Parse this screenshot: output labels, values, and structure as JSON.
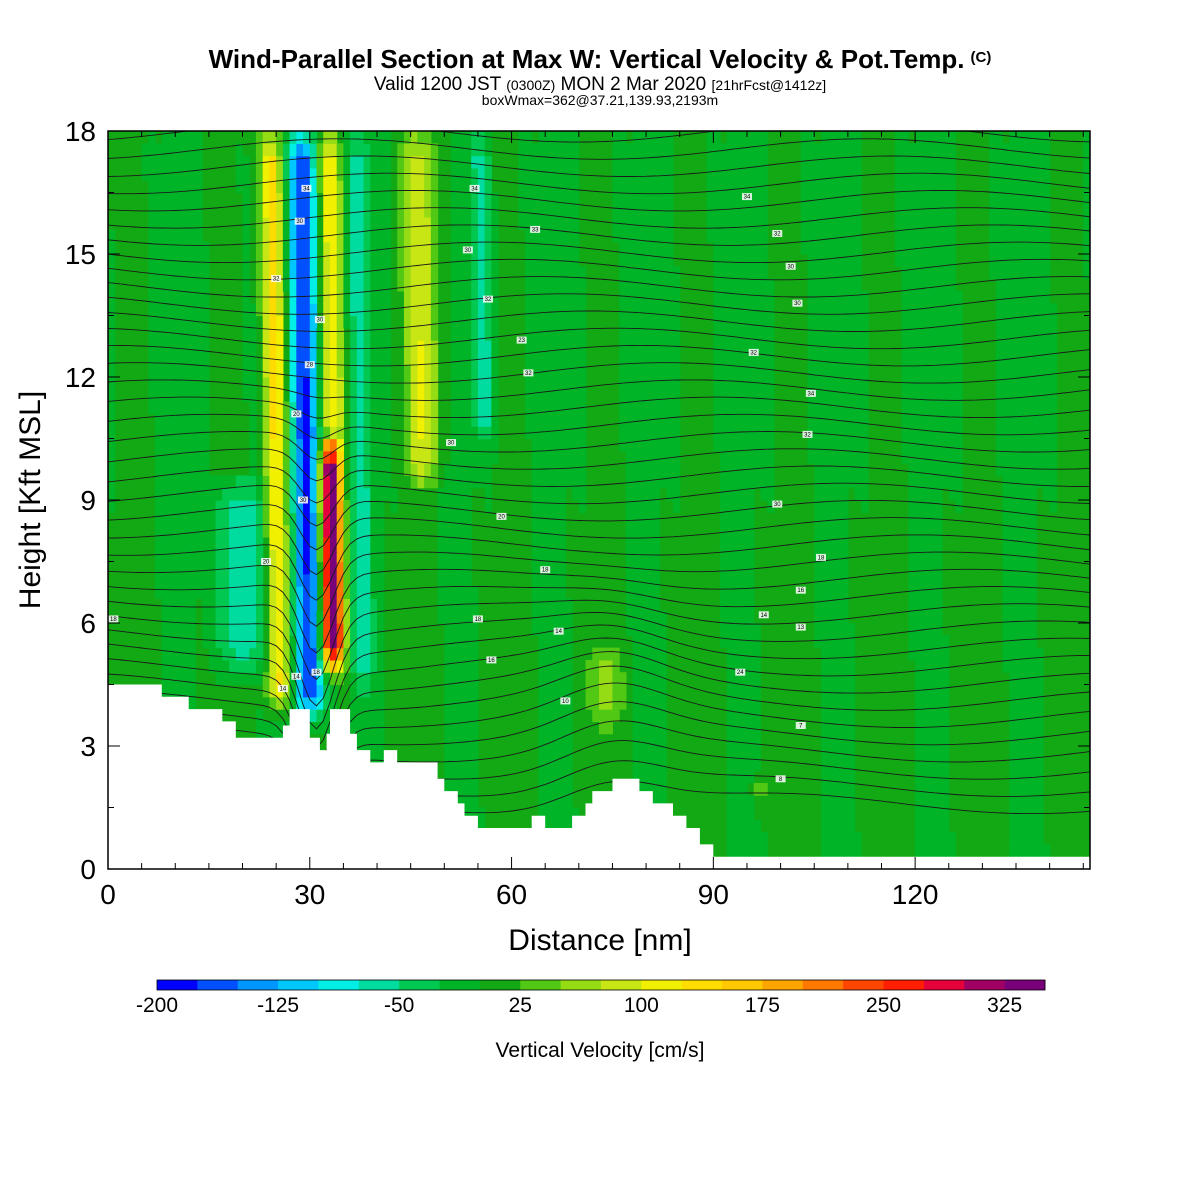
{
  "title": {
    "main": "Wind-Parallel Section at Max W: Vertical Velocity & Pot.Temp.",
    "copyright": "(C)",
    "valid_prefix": "Valid 1200 JST",
    "valid_utc": "(0300Z)",
    "valid_date": "MON 2 Mar 2020",
    "forecast": "[21hrFcst@1412z]",
    "box": "boxWmax=362@37.21,139.93,2193m"
  },
  "chart_data": {
    "type": "heatmap",
    "xlabel": "Distance [nm]",
    "ylabel": "Height [Kft MSL]",
    "xlim": [
      0,
      146
    ],
    "ylim": [
      0,
      18
    ],
    "x_ticks": [
      "0",
      "30",
      "60",
      "90",
      "120"
    ],
    "x_tick_values": [
      0,
      30,
      60,
      90,
      120
    ],
    "y_ticks": [
      "0",
      "3",
      "6",
      "9",
      "12",
      "15",
      "18"
    ],
    "y_tick_values": [
      0,
      3,
      6,
      9,
      12,
      15,
      18
    ],
    "colorbar": {
      "title": "Vertical Velocity [cm/s]",
      "labels": [
        "-200",
        "-125",
        "-50",
        "25",
        "100",
        "175",
        "250",
        "325"
      ],
      "label_values": [
        -200,
        -125,
        -50,
        25,
        100,
        175,
        250,
        325
      ],
      "min": -200,
      "max": 350,
      "step": 25,
      "colors": [
        "#0000ff",
        "#0050ff",
        "#0096ff",
        "#00c8ff",
        "#00eee6",
        "#00dca0",
        "#00c850",
        "#00b428",
        "#12a914",
        "#50c814",
        "#96dc14",
        "#c8e614",
        "#f0f000",
        "#ffdc00",
        "#ffc800",
        "#ffa500",
        "#ff7800",
        "#ff4600",
        "#ff1e00",
        "#e6003c",
        "#a00064",
        "#780078"
      ]
    },
    "vertical_velocity_features": [
      {
        "x": 25.5,
        "base": 3.5,
        "top": 18,
        "w": 140,
        "halfwidth": 1.8
      },
      {
        "x": 30,
        "base": 3.3,
        "top": 18,
        "w": -180,
        "halfwidth": 2.2
      },
      {
        "x": 33.5,
        "base": 4.5,
        "top": 10.5,
        "w": 362,
        "halfwidth": 1.6
      },
      {
        "x": 33.5,
        "base": 10,
        "top": 18,
        "w": 120,
        "halfwidth": 1.8
      },
      {
        "x": 20,
        "base": 4.5,
        "top": 9.5,
        "w": -80,
        "halfwidth": 3.5
      },
      {
        "x": 38,
        "base": 4,
        "top": 18,
        "w": -60,
        "halfwidth": 1.6
      },
      {
        "x": 47,
        "base": 9,
        "top": 18,
        "w": 90,
        "halfwidth": 2.5
      },
      {
        "x": 56,
        "base": 10,
        "top": 18,
        "w": -60,
        "halfwidth": 1.5
      },
      {
        "x": 74,
        "base": 3,
        "top": 5.5,
        "w": 60,
        "halfwidth": 2.5
      },
      {
        "x": 97,
        "base": 1,
        "top": 2.5,
        "w": 40,
        "halfwidth": 1.5
      }
    ],
    "terrain": [
      [
        0,
        4.5
      ],
      [
        8,
        4.5
      ],
      [
        8,
        4.2
      ],
      [
        12,
        4.2
      ],
      [
        12,
        3.9
      ],
      [
        17,
        3.9
      ],
      [
        17,
        3.6
      ],
      [
        19,
        3.6
      ],
      [
        19,
        3.2
      ],
      [
        26,
        3.2
      ],
      [
        26,
        3.5
      ],
      [
        27,
        3.5
      ],
      [
        27,
        3.9
      ],
      [
        30,
        3.9
      ],
      [
        30,
        3.2
      ],
      [
        31.5,
        3.2
      ],
      [
        31.5,
        2.9
      ],
      [
        32.5,
        2.9
      ],
      [
        32.5,
        3.3
      ],
      [
        33,
        3.3
      ],
      [
        33,
        3.9
      ],
      [
        36,
        3.9
      ],
      [
        36,
        3.3
      ],
      [
        37,
        3.3
      ],
      [
        37,
        2.9
      ],
      [
        39,
        2.9
      ],
      [
        39,
        2.6
      ],
      [
        41,
        2.6
      ],
      [
        41,
        2.9
      ],
      [
        43,
        2.9
      ],
      [
        43,
        2.6
      ],
      [
        49,
        2.6
      ],
      [
        49,
        2.2
      ],
      [
        50,
        2.2
      ],
      [
        50,
        1.9
      ],
      [
        52,
        1.9
      ],
      [
        52,
        1.6
      ],
      [
        53,
        1.6
      ],
      [
        53,
        1.3
      ],
      [
        55,
        1.3
      ],
      [
        55,
        1.0
      ],
      [
        63,
        1.0
      ],
      [
        63,
        1.3
      ],
      [
        65,
        1.3
      ],
      [
        65,
        1.0
      ],
      [
        69,
        1.0
      ],
      [
        69,
        1.3
      ],
      [
        71,
        1.3
      ],
      [
        71,
        1.6
      ],
      [
        72,
        1.6
      ],
      [
        72,
        1.9
      ],
      [
        75,
        1.9
      ],
      [
        75,
        2.2
      ],
      [
        79,
        2.2
      ],
      [
        79,
        1.9
      ],
      [
        81,
        1.9
      ],
      [
        81,
        1.6
      ],
      [
        84,
        1.6
      ],
      [
        84,
        1.3
      ],
      [
        86,
        1.3
      ],
      [
        86,
        1.0
      ],
      [
        88,
        1.0
      ],
      [
        88,
        0.6
      ],
      [
        90,
        0.6
      ],
      [
        90,
        0.3
      ],
      [
        140,
        0.3
      ],
      [
        140,
        0.3
      ],
      [
        146,
        0.3
      ]
    ],
    "isentrope_labels": [
      {
        "x": 0.8,
        "y": 6.1,
        "text": "18"
      },
      {
        "x": 26,
        "y": 4.4,
        "text": "14"
      },
      {
        "x": 28,
        "y": 4.7,
        "text": "14"
      },
      {
        "x": 31,
        "y": 4.8,
        "text": "18"
      },
      {
        "x": 23.5,
        "y": 7.5,
        "text": "20"
      },
      {
        "x": 29,
        "y": 9,
        "text": "30"
      },
      {
        "x": 28,
        "y": 11.1,
        "text": "20"
      },
      {
        "x": 30,
        "y": 12.3,
        "text": "28"
      },
      {
        "x": 31.5,
        "y": 13.4,
        "text": "30"
      },
      {
        "x": 25,
        "y": 14.4,
        "text": "32"
      },
      {
        "x": 28.5,
        "y": 15.8,
        "text": "30"
      },
      {
        "x": 29.5,
        "y": 16.6,
        "text": "34"
      },
      {
        "x": 51,
        "y": 10.4,
        "text": "30"
      },
      {
        "x": 58.5,
        "y": 8.6,
        "text": "20"
      },
      {
        "x": 65,
        "y": 7.3,
        "text": "18"
      },
      {
        "x": 55,
        "y": 6.1,
        "text": "18"
      },
      {
        "x": 57,
        "y": 5.1,
        "text": "16"
      },
      {
        "x": 67,
        "y": 5.8,
        "text": "14"
      },
      {
        "x": 68,
        "y": 4.1,
        "text": "10"
      },
      {
        "x": 62.5,
        "y": 12.1,
        "text": "32"
      },
      {
        "x": 61.5,
        "y": 12.9,
        "text": "23"
      },
      {
        "x": 56.5,
        "y": 13.9,
        "text": "32"
      },
      {
        "x": 53.5,
        "y": 15.1,
        "text": "30"
      },
      {
        "x": 54.5,
        "y": 16.6,
        "text": "34"
      },
      {
        "x": 63.5,
        "y": 15.6,
        "text": "33"
      },
      {
        "x": 95,
        "y": 16.4,
        "text": "34"
      },
      {
        "x": 99.5,
        "y": 15.5,
        "text": "32"
      },
      {
        "x": 101.5,
        "y": 14.7,
        "text": "30"
      },
      {
        "x": 102.5,
        "y": 13.8,
        "text": "30"
      },
      {
        "x": 96,
        "y": 12.6,
        "text": "32"
      },
      {
        "x": 104.5,
        "y": 11.6,
        "text": "34"
      },
      {
        "x": 104,
        "y": 10.6,
        "text": "32"
      },
      {
        "x": 99.5,
        "y": 8.9,
        "text": "30"
      },
      {
        "x": 106,
        "y": 7.6,
        "text": "18"
      },
      {
        "x": 103,
        "y": 6.8,
        "text": "16"
      },
      {
        "x": 97.5,
        "y": 6.2,
        "text": "14"
      },
      {
        "x": 103,
        "y": 5.9,
        "text": "13"
      },
      {
        "x": 94,
        "y": 4.8,
        "text": "24"
      },
      {
        "x": 103,
        "y": 3.5,
        "text": "7"
      },
      {
        "x": 100,
        "y": 2.2,
        "text": "8"
      }
    ]
  }
}
